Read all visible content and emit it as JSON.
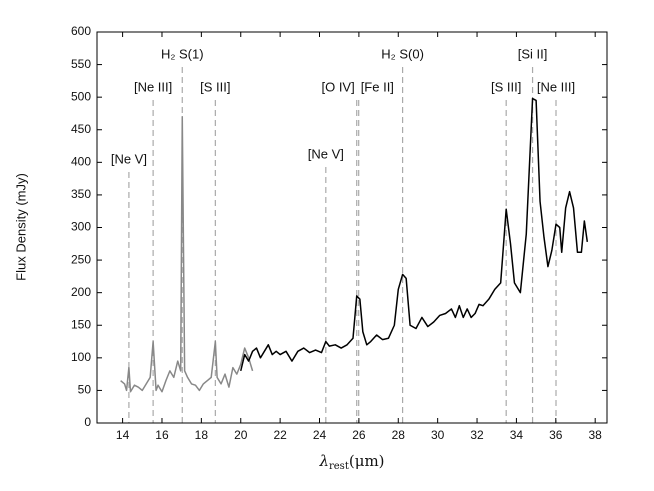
{
  "chart_data": {
    "type": "line",
    "y_label": "Flux Density (mJy)",
    "x_label": {
      "symbol": "λ",
      "subscript": "rest",
      "unit": "(μm)"
    },
    "xlim": [
      12.7,
      38.6
    ],
    "xticks": [
      14,
      16,
      18,
      20,
      22,
      24,
      26,
      28,
      30,
      32,
      34,
      36,
      38
    ],
    "ylim": [
      0,
      600
    ],
    "yticks": [
      0,
      50,
      100,
      150,
      200,
      250,
      300,
      350,
      400,
      450,
      500,
      550,
      600
    ],
    "grid": false,
    "series": [
      {
        "color": "#888888",
        "x": [
          13.9,
          14.1,
          14.2,
          14.32,
          14.4,
          14.6,
          14.8,
          15.0,
          15.2,
          15.4,
          15.55,
          15.7,
          15.8,
          16.0,
          16.2,
          16.4,
          16.6,
          16.8,
          16.95,
          17.03,
          17.15,
          17.3,
          17.5,
          17.7,
          17.9,
          18.1,
          18.3,
          18.5,
          18.71,
          18.8,
          19.0,
          19.2,
          19.4,
          19.6,
          19.8,
          20.0,
          20.2,
          20.4,
          20.6
        ],
        "values": [
          65,
          60,
          50,
          85,
          48,
          58,
          55,
          50,
          60,
          70,
          125,
          50,
          58,
          48,
          65,
          80,
          70,
          95,
          80,
          470,
          80,
          70,
          60,
          58,
          50,
          60,
          65,
          70,
          125,
          70,
          60,
          75,
          55,
          85,
          75,
          90,
          115,
          100,
          80
        ]
      },
      {
        "color": "#000000",
        "x": [
          20.0,
          20.2,
          20.4,
          20.6,
          20.8,
          21.0,
          21.2,
          21.4,
          21.6,
          21.8,
          22.0,
          22.3,
          22.6,
          22.9,
          23.2,
          23.5,
          23.8,
          24.1,
          24.32,
          24.5,
          24.8,
          25.1,
          25.4,
          25.7,
          25.89,
          26.05,
          26.2,
          26.4,
          26.6,
          26.9,
          27.2,
          27.5,
          27.8,
          28.0,
          28.22,
          28.4,
          28.6,
          28.9,
          29.2,
          29.5,
          29.8,
          30.1,
          30.4,
          30.7,
          30.9,
          31.1,
          31.3,
          31.5,
          31.7,
          31.9,
          32.1,
          32.3,
          32.6,
          32.9,
          33.2,
          33.48,
          33.7,
          33.9,
          34.2,
          34.5,
          34.82,
          35.0,
          35.2,
          35.4,
          35.6,
          35.8,
          36.01,
          36.2,
          36.3,
          36.5,
          36.7,
          36.9,
          37.1,
          37.3,
          37.45,
          37.6
        ],
        "values": [
          80,
          105,
          95,
          110,
          115,
          100,
          110,
          120,
          105,
          110,
          105,
          110,
          95,
          110,
          115,
          108,
          112,
          108,
          125,
          118,
          120,
          115,
          120,
          130,
          195,
          190,
          140,
          120,
          125,
          135,
          128,
          130,
          150,
          205,
          228,
          222,
          150,
          145,
          162,
          148,
          155,
          165,
          168,
          175,
          162,
          180,
          162,
          175,
          162,
          168,
          182,
          180,
          190,
          205,
          215,
          328,
          275,
          215,
          200,
          290,
          498,
          495,
          340,
          285,
          240,
          265,
          305,
          300,
          262,
          330,
          355,
          330,
          262,
          262,
          310,
          278
        ]
      }
    ],
    "annotations": [
      {
        "x": 14.32,
        "label": "[Ne V]"
      },
      {
        "x": 15.55,
        "label": "[Ne III]"
      },
      {
        "x": 17.03,
        "label": "H₂ S(1)"
      },
      {
        "x": 18.71,
        "label": "[S III]"
      },
      {
        "x": 24.32,
        "label": "[Ne V]"
      },
      {
        "x": 25.89,
        "label": "[O IV]"
      },
      {
        "x": 25.99,
        "label": "[Fe II]"
      },
      {
        "x": 28.22,
        "label": "H₂ S(0)"
      },
      {
        "x": 33.48,
        "label": "[S III]"
      },
      {
        "x": 34.82,
        "label": "[Si II]"
      },
      {
        "x": 36.01,
        "label": "[Ne III]"
      }
    ]
  }
}
